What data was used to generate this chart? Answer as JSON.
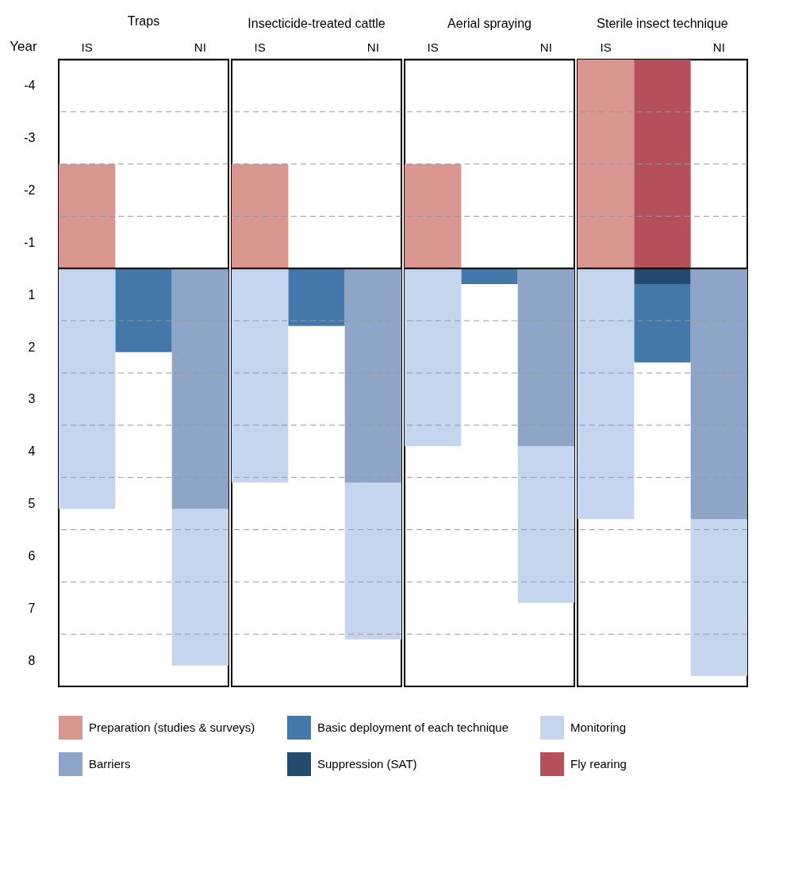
{
  "chart_data": [
    {
      "type": "bar",
      "title": "Traps",
      "ylabel": "Year",
      "categories": [
        "IS",
        null,
        "NI"
      ],
      "ylim": [
        8,
        -4
      ],
      "yticks": [
        {
          "value": -3.5,
          "label": "-4"
        },
        {
          "value": -2.5,
          "label": "-3"
        },
        {
          "value": -1.5,
          "label": "-2"
        },
        {
          "value": -0.5,
          "label": "-1"
        },
        {
          "value": 0.5,
          "label": "1"
        },
        {
          "value": 1.5,
          "label": "2"
        },
        {
          "value": 2.5,
          "label": "3"
        },
        {
          "value": 3.5,
          "label": "4"
        },
        {
          "value": 4.5,
          "label": "5"
        },
        {
          "value": 5.5,
          "label": "6"
        },
        {
          "value": 6.5,
          "label": "7"
        },
        {
          "value": 7.5,
          "label": "8"
        },
        {
          "value": -3,
          "label": null
        },
        {
          "value": -2,
          "label": null
        },
        {
          "value": -1,
          "label": null
        },
        {
          "value": 1,
          "label": null
        },
        {
          "value": 2,
          "label": null
        },
        {
          "value": 3,
          "label": null
        },
        {
          "value": 4,
          "label": null
        },
        {
          "value": 5,
          "label": null
        },
        {
          "value": 6,
          "label": null
        },
        {
          "value": 7,
          "label": null
        }
      ],
      "grid": "y",
      "legend": "bottom",
      "ref_lines": [
        {
          "axis": "y",
          "value": 0,
          "color": "#000000"
        }
      ],
      "series": [
        {
          "name": "Preparation (studies & surveys)",
          "color": "#d9958f",
          "values": [
            2,
            null,
            null
          ],
          "base": [
            -2,
            null,
            null
          ]
        },
        {
          "name": "Basic deployment of each technique",
          "color": "#4477aa",
          "values": [
            null,
            1.6,
            null
          ],
          "base": [
            null,
            0,
            null
          ]
        },
        {
          "name": "Monitoring",
          "color": "#c5d5ee",
          "values": [
            4.6,
            null,
            3.0
          ],
          "base": [
            0,
            null,
            4.6
          ]
        },
        {
          "name": "Barriers",
          "color": "#8fa5c8",
          "values": [
            null,
            null,
            4.6
          ],
          "base": [
            null,
            null,
            0
          ]
        }
      ]
    },
    {
      "type": "bar",
      "title": "Insecticide-treated cattle",
      "categories": [
        "IS",
        null,
        "NI"
      ],
      "ylim": [
        8,
        -4
      ],
      "tick_labels": "x",
      "legend": "bottom",
      "yticks": [
        {
          "value": -3,
          "label": null
        },
        {
          "value": -2,
          "label": null
        },
        {
          "value": -1,
          "label": null
        },
        {
          "value": 1,
          "label": null
        },
        {
          "value": 2,
          "label": null
        },
        {
          "value": 3,
          "label": null
        },
        {
          "value": 4,
          "label": null
        },
        {
          "value": 5,
          "label": null
        },
        {
          "value": 6,
          "label": null
        },
        {
          "value": 7,
          "label": null
        }
      ],
      "grid": "y",
      "ref_lines": [
        {
          "axis": "y",
          "value": 0,
          "color": "#000000"
        }
      ],
      "series": [
        {
          "name": "Preparation (studies & surveys)",
          "color": "#d9958f",
          "values": [
            2,
            null,
            null
          ],
          "base": [
            -2,
            null,
            null
          ]
        },
        {
          "name": "Basic deployment of each technique",
          "color": "#4477aa",
          "values": [
            null,
            1.1,
            null
          ],
          "base": [
            null,
            0,
            null
          ]
        },
        {
          "name": "Monitoring",
          "color": "#c5d5ee",
          "values": [
            4.1,
            null,
            3.0
          ],
          "base": [
            0,
            null,
            4.1
          ]
        },
        {
          "name": "Barriers",
          "color": "#8fa5c8",
          "values": [
            null,
            null,
            4.1
          ],
          "base": [
            null,
            null,
            0
          ]
        }
      ]
    },
    {
      "type": "bar",
      "title": "Aerial spraying",
      "categories": [
        "IS",
        null,
        "NI"
      ],
      "ylim": [
        8,
        -4
      ],
      "tick_labels": "x",
      "legend": "bottom",
      "yticks": [
        {
          "value": -3,
          "label": null
        },
        {
          "value": -2,
          "label": null
        },
        {
          "value": -1,
          "label": null
        },
        {
          "value": 1,
          "label": null
        },
        {
          "value": 2,
          "label": null
        },
        {
          "value": 3,
          "label": null
        },
        {
          "value": 4,
          "label": null
        },
        {
          "value": 5,
          "label": null
        },
        {
          "value": 6,
          "label": null
        },
        {
          "value": 7,
          "label": null
        }
      ],
      "grid": "y",
      "ref_lines": [
        {
          "axis": "y",
          "value": 0,
          "color": "#000000"
        }
      ],
      "series": [
        {
          "name": "Preparation (studies & surveys)",
          "color": "#d9958f",
          "values": [
            2,
            null,
            null
          ],
          "base": [
            -2,
            null,
            null
          ]
        },
        {
          "name": "Basic deployment of each technique",
          "color": "#4477aa",
          "values": [
            null,
            0.3,
            null
          ],
          "base": [
            null,
            0,
            null
          ]
        },
        {
          "name": "Monitoring",
          "color": "#c5d5ee",
          "values": [
            3.4,
            null,
            3.0
          ],
          "base": [
            0,
            null,
            3.4
          ]
        },
        {
          "name": "Barriers",
          "color": "#8fa5c8",
          "values": [
            null,
            null,
            3.4
          ],
          "base": [
            null,
            null,
            0
          ]
        }
      ]
    },
    {
      "type": "bar",
      "title": "Sterile insect technique",
      "categories": [
        "IS",
        null,
        "NI"
      ],
      "ylim": [
        8,
        -4
      ],
      "tick_labels": "x",
      "legend": "bottom",
      "yticks": [
        {
          "value": -3,
          "label": null
        },
        {
          "value": -2,
          "label": null
        },
        {
          "value": -1,
          "label": null
        },
        {
          "value": 1,
          "label": null
        },
        {
          "value": 2,
          "label": null
        },
        {
          "value": 3,
          "label": null
        },
        {
          "value": 4,
          "label": null
        },
        {
          "value": 5,
          "label": null
        },
        {
          "value": 6,
          "label": null
        },
        {
          "value": 7,
          "label": null
        }
      ],
      "grid": "y",
      "ref_lines": [
        {
          "axis": "y",
          "value": 0,
          "color": "#000000"
        }
      ],
      "series": [
        {
          "name": "Preparation (studies & surveys)",
          "color": "#d9958f",
          "values": [
            4,
            null,
            null
          ],
          "base": [
            -4,
            null,
            null
          ]
        },
        {
          "name": "Basic deployment of each technique",
          "color": "#4477aa",
          "values": [
            null,
            1.5,
            null
          ],
          "base": [
            null,
            0.3,
            null
          ]
        },
        {
          "name": "Suppression (SAT)",
          "color": "#244a6e",
          "values": [
            null,
            0.3,
            null
          ],
          "base": [
            null,
            0,
            null
          ]
        },
        {
          "name": "Monitoring",
          "color": "#c5d5ee",
          "values": [
            4.8,
            null,
            3.0
          ],
          "base": [
            0,
            null,
            4.8
          ]
        },
        {
          "name": "Barriers",
          "color": "#8fa5c8",
          "values": [
            null,
            null,
            4.8
          ],
          "base": [
            null,
            null,
            0
          ]
        },
        {
          "name": "Fly rearing",
          "color": "#b5505a",
          "values": [
            null,
            4,
            null
          ],
          "base": [
            null,
            -4,
            null
          ]
        }
      ]
    }
  ]
}
